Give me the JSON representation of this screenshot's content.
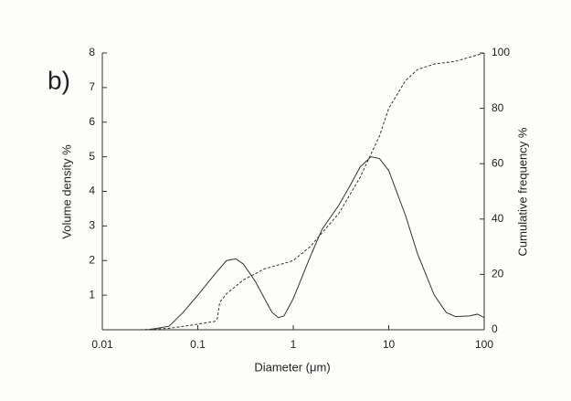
{
  "chart_data": {
    "type": "line",
    "annotation": "b)",
    "xlabel": "Diameter (μm)",
    "ylabel": "Volume density %",
    "y2label": "Cumulative frequency %",
    "xscale": "log",
    "xlim": [
      0.01,
      100
    ],
    "xticks": [
      0.01,
      0.1,
      1,
      10,
      100
    ],
    "ylim": [
      0,
      8
    ],
    "yticks": [
      1,
      2,
      3,
      4,
      5,
      6,
      7,
      8
    ],
    "y2lim": [
      0,
      100
    ],
    "y2ticks": [
      0,
      20,
      40,
      60,
      80,
      100
    ],
    "series": [
      {
        "color": "#333333",
        "style": "solid",
        "x": [
          0.03,
          0.05,
          0.07,
          0.1,
          0.15,
          0.2,
          0.25,
          0.3,
          0.4,
          0.5,
          0.6,
          0.7,
          0.8,
          1.0,
          1.5,
          2,
          3,
          4,
          5,
          6.5,
          8,
          10,
          15,
          20,
          30,
          40,
          50,
          70,
          85,
          100
        ],
        "values": [
          0,
          0.1,
          0.5,
          1.0,
          1.6,
          2.0,
          2.05,
          1.9,
          1.4,
          0.9,
          0.5,
          0.35,
          0.4,
          0.9,
          2.1,
          2.9,
          3.6,
          4.2,
          4.7,
          5.0,
          4.95,
          4.6,
          3.3,
          2.2,
          1.0,
          0.5,
          0.38,
          0.4,
          0.45,
          0.35
        ]
      },
      {
        "color": "#333333",
        "style": "dashed",
        "axis": "y2",
        "x": [
          0.025,
          0.05,
          0.1,
          0.15,
          0.16,
          0.17,
          0.2,
          0.3,
          0.5,
          0.8,
          1,
          1.5,
          2,
          3,
          5,
          8,
          10,
          15,
          20,
          30,
          50,
          100
        ],
        "values": [
          0,
          0.5,
          2,
          3,
          4,
          10,
          13,
          18,
          22,
          24,
          25,
          30,
          35,
          42,
          55,
          70,
          80,
          90,
          94,
          96,
          97,
          100
        ]
      }
    ]
  }
}
